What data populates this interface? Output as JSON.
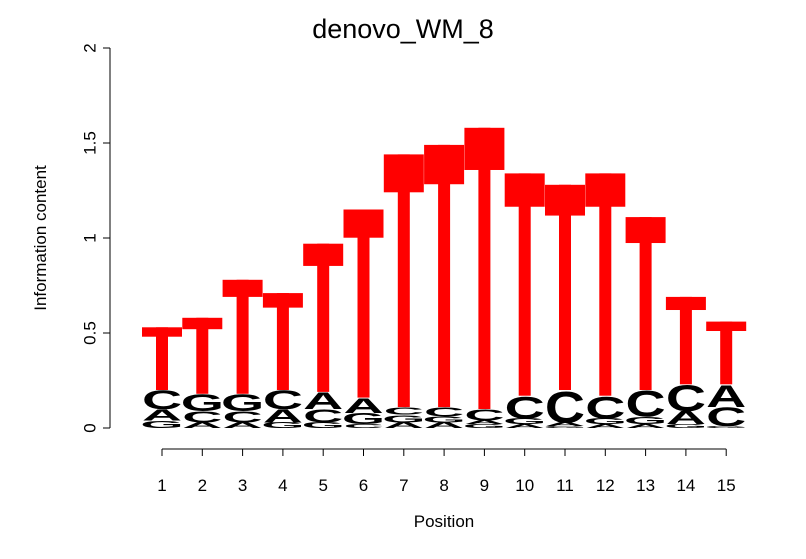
{
  "chart_data": {
    "type": "sequence-logo",
    "title": "denovo_WM_8",
    "xlabel": "Position",
    "ylabel": "Information content",
    "ylim": [
      0,
      2
    ],
    "yticks": [
      {
        "value": 0,
        "label": "0"
      },
      {
        "value": 0.5,
        "label": "0.5"
      },
      {
        "value": 1,
        "label": "1"
      },
      {
        "value": 1.5,
        "label": "1.5"
      },
      {
        "value": 2,
        "label": "2"
      }
    ],
    "positions": [
      "1",
      "2",
      "3",
      "4",
      "5",
      "6",
      "7",
      "8",
      "9",
      "10",
      "11",
      "12",
      "13",
      "14",
      "15"
    ],
    "colors": {
      "A": "#00ee00",
      "C": "#0000ee",
      "G": "#ffa500",
      "T": "#ff0000"
    },
    "stacks": [
      [
        {
          "letter": "G",
          "height": 0.04
        },
        {
          "letter": "A",
          "height": 0.06
        },
        {
          "letter": "C",
          "height": 0.1
        },
        {
          "letter": "T",
          "height": 0.33
        }
      ],
      [
        {
          "letter": "A",
          "height": 0.03
        },
        {
          "letter": "C",
          "height": 0.06
        },
        {
          "letter": "G",
          "height": 0.09
        },
        {
          "letter": "T",
          "height": 0.4
        }
      ],
      [
        {
          "letter": "A",
          "height": 0.03
        },
        {
          "letter": "C",
          "height": 0.06
        },
        {
          "letter": "G",
          "height": 0.09
        },
        {
          "letter": "T",
          "height": 0.6
        }
      ],
      [
        {
          "letter": "G",
          "height": 0.03
        },
        {
          "letter": "A",
          "height": 0.07
        },
        {
          "letter": "C",
          "height": 0.1
        },
        {
          "letter": "T",
          "height": 0.51
        }
      ],
      [
        {
          "letter": "G",
          "height": 0.03
        },
        {
          "letter": "C",
          "height": 0.07
        },
        {
          "letter": "A",
          "height": 0.09
        },
        {
          "letter": "T",
          "height": 0.78
        }
      ],
      [
        {
          "letter": "C",
          "height": 0.02
        },
        {
          "letter": "G",
          "height": 0.06
        },
        {
          "letter": "A",
          "height": 0.08
        },
        {
          "letter": "T",
          "height": 0.99
        }
      ],
      [
        {
          "letter": "A",
          "height": 0.03
        },
        {
          "letter": "G",
          "height": 0.04
        },
        {
          "letter": "C",
          "height": 0.04
        },
        {
          "letter": "T",
          "height": 1.33
        }
      ],
      [
        {
          "letter": "A",
          "height": 0.03
        },
        {
          "letter": "G",
          "height": 0.03
        },
        {
          "letter": "C",
          "height": 0.05
        },
        {
          "letter": "T",
          "height": 1.38
        }
      ],
      [
        {
          "letter": "G",
          "height": 0.02
        },
        {
          "letter": "A",
          "height": 0.02
        },
        {
          "letter": "C",
          "height": 0.06
        },
        {
          "letter": "T",
          "height": 1.48
        }
      ],
      [
        {
          "letter": "A",
          "height": 0.02
        },
        {
          "letter": "G",
          "height": 0.03
        },
        {
          "letter": "C",
          "height": 0.12
        },
        {
          "letter": "T",
          "height": 1.17
        }
      ],
      [
        {
          "letter": "G",
          "height": 0.01
        },
        {
          "letter": "A",
          "height": 0.02
        },
        {
          "letter": "C",
          "height": 0.17
        },
        {
          "letter": "T",
          "height": 1.08
        }
      ],
      [
        {
          "letter": "A",
          "height": 0.02
        },
        {
          "letter": "G",
          "height": 0.03
        },
        {
          "letter": "C",
          "height": 0.12
        },
        {
          "letter": "T",
          "height": 1.17
        }
      ],
      [
        {
          "letter": "A",
          "height": 0.02
        },
        {
          "letter": "G",
          "height": 0.04
        },
        {
          "letter": "C",
          "height": 0.14
        },
        {
          "letter": "T",
          "height": 0.91
        }
      ],
      [
        {
          "letter": "G",
          "height": 0.02
        },
        {
          "letter": "A",
          "height": 0.07
        },
        {
          "letter": "C",
          "height": 0.14
        },
        {
          "letter": "T",
          "height": 0.46
        }
      ],
      [
        {
          "letter": "G",
          "height": 0.01
        },
        {
          "letter": "C",
          "height": 0.1
        },
        {
          "letter": "A",
          "height": 0.12
        },
        {
          "letter": "T",
          "height": 0.33
        }
      ]
    ]
  }
}
